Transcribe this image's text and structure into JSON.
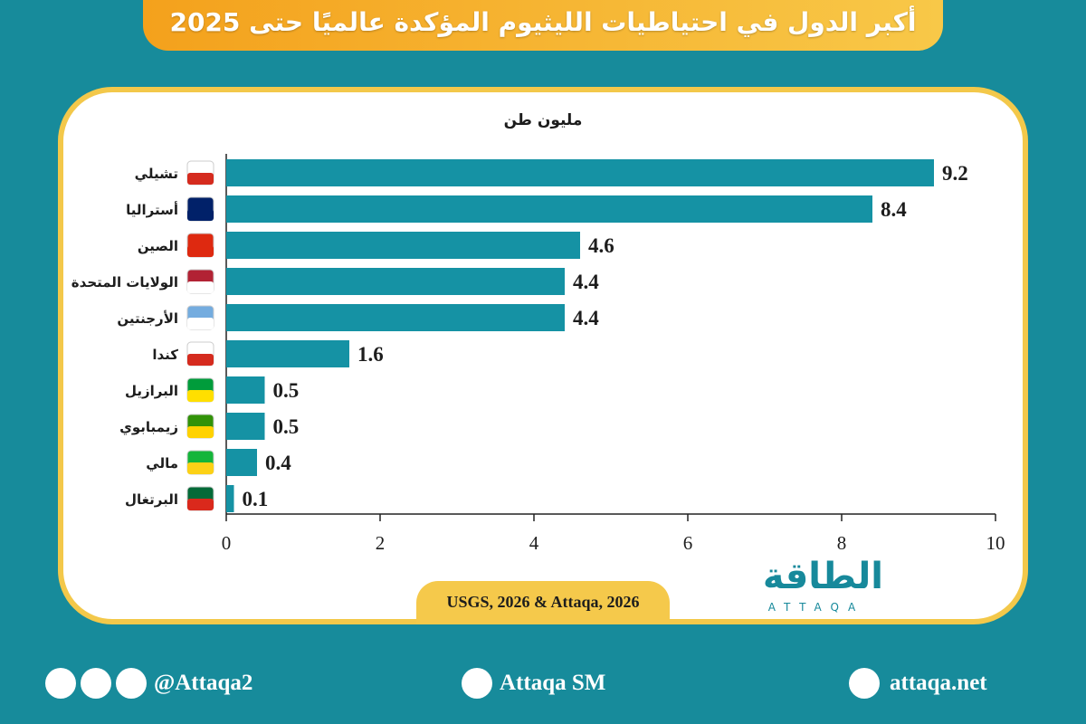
{
  "chart_data": {
    "type": "bar",
    "orientation": "horizontal",
    "title": "أكبر الدول في احتياطيات الليثيوم المؤكدة عالميًا حتى 2025",
    "unit_label": "مليون طن",
    "categories": [
      "تشيلي",
      "أستراليا",
      "الصين",
      "الولايات المتحدة",
      "الأرجنتين",
      "كندا",
      "البرازيل",
      "زيمبابوي",
      "مالي",
      "البرتغال"
    ],
    "values": [
      9.2,
      8.4,
      4.6,
      4.4,
      4.4,
      1.6,
      0.5,
      0.5,
      0.4,
      0.1
    ],
    "color": "#1592a4",
    "xlim": [
      0,
      10
    ],
    "xticks": [
      0,
      2,
      4,
      6,
      8,
      10
    ],
    "grid": false,
    "source": "USGS, 2026 & Attaqa, 2026"
  },
  "logo": {
    "arabic": "الطاقة",
    "latin": "ATTAQA"
  },
  "footer": {
    "social": "@Attaqa2",
    "youtube": "Attaqa SM",
    "website": "attaqa.net"
  }
}
